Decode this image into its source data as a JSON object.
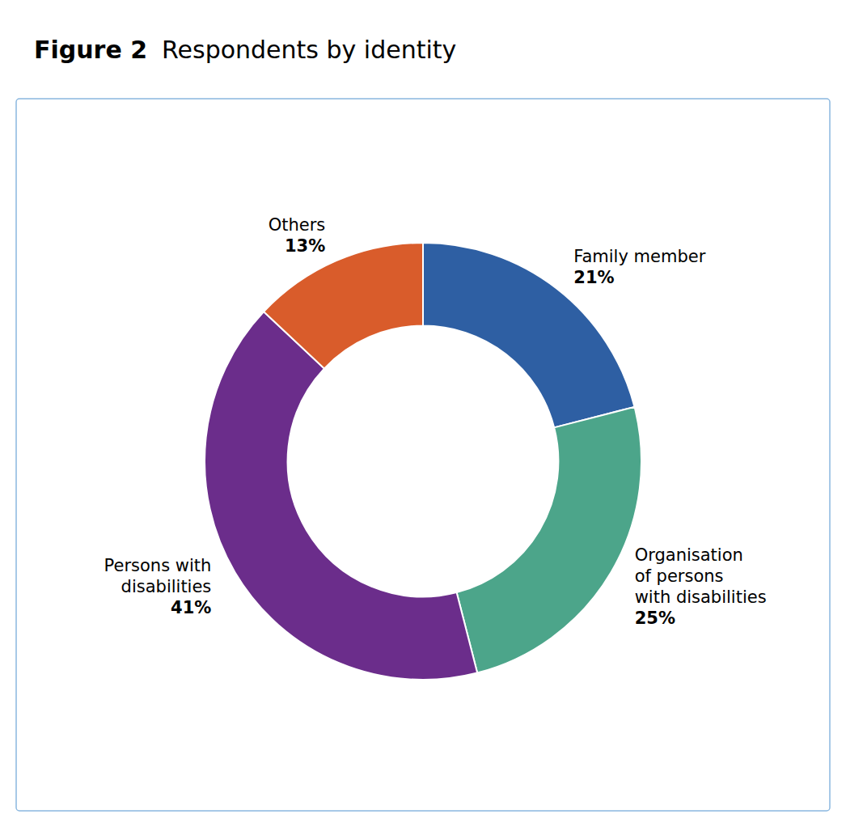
{
  "chart_data": {
    "type": "donut",
    "title": "Figure 2",
    "subtitle": "Respondents by identity",
    "categories": [
      "Family member",
      "Organisation\nof persons\nwith disabilities",
      "Persons with\ndisabilities",
      "Others"
    ],
    "values": [
      21,
      25,
      41,
      13
    ],
    "value_labels": [
      "21%",
      "25%",
      "41%",
      "13%"
    ],
    "data_labels": true,
    "colors": [
      "#2E5FA3",
      "#4CA58A",
      "#6B2D8B",
      "#D95C2B"
    ]
  }
}
